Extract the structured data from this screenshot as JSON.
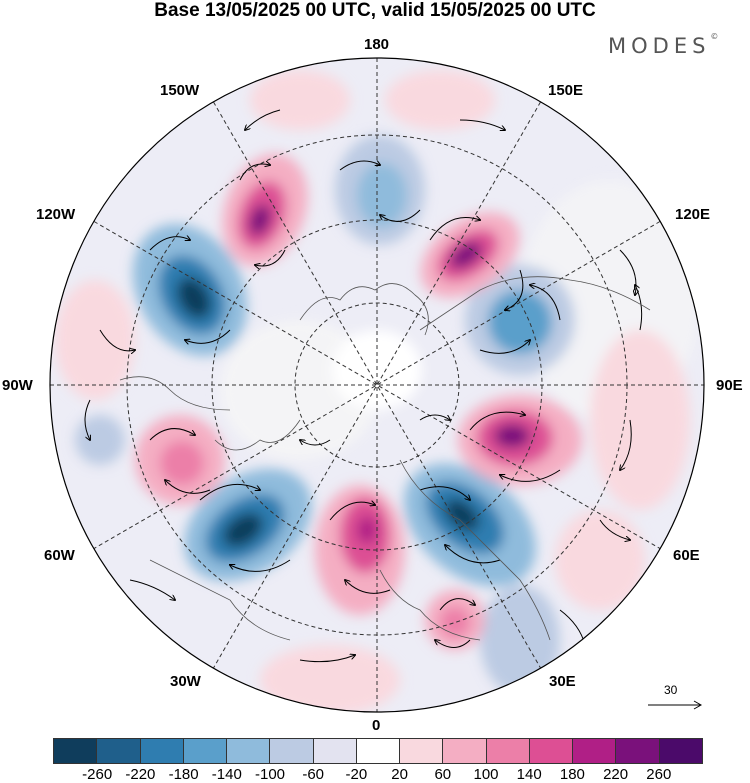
{
  "header": {
    "title": "Base 13/05/2025 00 UTC, valid 15/05/2025 00 UTC",
    "brand": "MODES",
    "brand_mark": "©"
  },
  "map": {
    "projection": "north-polar-stereographic",
    "longitude_labels": {
      "top": "180",
      "bottom": "0",
      "left": "90W",
      "right": "90E",
      "upper_left_1": "150W",
      "upper_left_2": "120W",
      "upper_right_1": "150E",
      "upper_right_2": "120E",
      "lower_left_1": "60W",
      "lower_left_2": "30W",
      "lower_right_1": "60E",
      "lower_right_2": "30E"
    },
    "field": "anomaly shading with wind vectors",
    "reference_vector": "30"
  },
  "colorbar": {
    "colors": [
      "#0f3d5c",
      "#1f5f8b",
      "#2f7db0",
      "#5a9fcb",
      "#8fbbdc",
      "#bccbe3",
      "#e3e3f0",
      "#ffffff",
      "#f9d9df",
      "#f4aec3",
      "#ec7fa8",
      "#dd4f94",
      "#b01f86",
      "#7a117b",
      "#4b0a6a"
    ],
    "ticks": [
      "-260",
      "-220",
      "-180",
      "-140",
      "-100",
      "-60",
      "-20",
      "20",
      "60",
      "100",
      "140",
      "180",
      "220",
      "260"
    ]
  }
}
